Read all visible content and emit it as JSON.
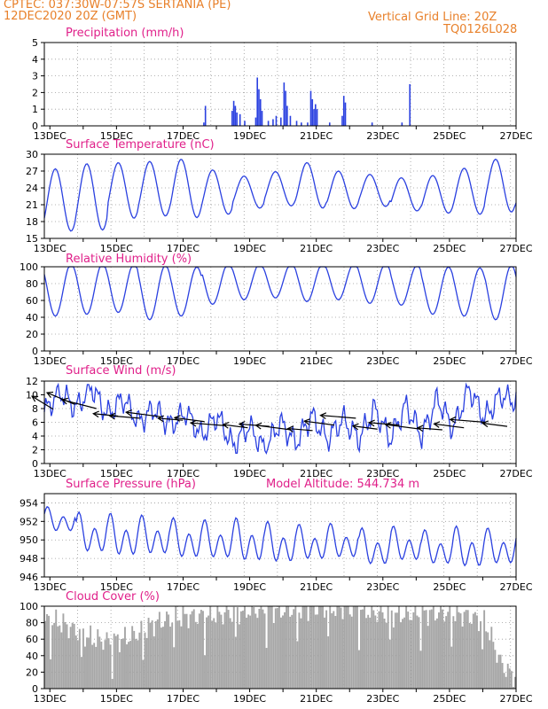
{
  "colors": {
    "header": "#e8802a",
    "panel_title": "#e0208a",
    "series_line": "#2a40e0",
    "precip_bar": "#2a40e0",
    "cloud_bar": "#a6a6a6",
    "wind_arrow": "#000000",
    "grid": "#9a9a9a"
  },
  "header": {
    "line1_left": "CPTEC:   037:30W-07:57S   SERTANIA (PE)",
    "line2_left": "12DEC2020 20Z (GMT)",
    "line1_right": "Vertical Grid Line: 20Z",
    "line2_right": "TQ0126L028"
  },
  "chart_data": [
    {
      "id": "precip",
      "type": "bar",
      "title": "Precipitation (mm/h)",
      "ylim": [
        0,
        5
      ],
      "yticks": [
        "0",
        "1",
        "2",
        "3",
        "4",
        "5"
      ],
      "xticks": [
        "13DEC",
        "15DEC",
        "17DEC",
        "19DEC",
        "21DEC",
        "23DEC",
        "25DEC",
        "27DEC"
      ],
      "grid": true,
      "bar_events": [
        [
          5.05,
          0.2
        ],
        [
          5.1,
          1.2
        ],
        [
          5.95,
          0.9
        ],
        [
          6.0,
          1.5
        ],
        [
          6.05,
          1.2
        ],
        [
          6.1,
          0.8
        ],
        [
          6.2,
          0.7
        ],
        [
          6.35,
          0.3
        ],
        [
          6.7,
          0.5
        ],
        [
          6.75,
          2.9
        ],
        [
          6.8,
          2.2
        ],
        [
          6.85,
          1.6
        ],
        [
          6.9,
          0.9
        ],
        [
          7.1,
          0.3
        ],
        [
          7.25,
          0.4
        ],
        [
          7.35,
          0.6
        ],
        [
          7.5,
          0.5
        ],
        [
          7.6,
          2.6
        ],
        [
          7.65,
          2.1
        ],
        [
          7.7,
          1.2
        ],
        [
          7.8,
          0.6
        ],
        [
          8.0,
          0.3
        ],
        [
          8.15,
          0.2
        ],
        [
          8.35,
          0.2
        ],
        [
          8.45,
          2.1
        ],
        [
          8.5,
          1.6
        ],
        [
          8.55,
          1.0
        ],
        [
          8.6,
          1.3
        ],
        [
          8.65,
          1.0
        ],
        [
          9.05,
          0.2
        ],
        [
          9.45,
          0.6
        ],
        [
          9.5,
          1.8
        ],
        [
          9.55,
          1.4
        ],
        [
          10.4,
          0.2
        ],
        [
          11.35,
          0.2
        ],
        [
          11.6,
          2.5
        ]
      ]
    },
    {
      "id": "temperature",
      "type": "line",
      "title": "Surface Temperature (nC)",
      "ylim": [
        15,
        30
      ],
      "yticks": [
        "15",
        "18",
        "21",
        "24",
        "27",
        "30"
      ],
      "xticks": [
        "13DEC",
        "15DEC",
        "17DEC",
        "19DEC",
        "21DEC",
        "23DEC",
        "25DEC",
        "27DEC"
      ],
      "grid": true,
      "daily_max": [
        27.4,
        28.3,
        28.5,
        28.7,
        29.1,
        27.2,
        26.1,
        26.9,
        28.5,
        27.0,
        26.4,
        25.8,
        26.2,
        27.5,
        29.1,
        29.6
      ],
      "daily_min": [
        16.3,
        16.5,
        18.6,
        19.0,
        18.7,
        19.3,
        20.4,
        20.8,
        20.4,
        20.3,
        20.7,
        19.9,
        19.5,
        19.3,
        19.7,
        19.2
      ]
    },
    {
      "id": "humidity",
      "type": "line",
      "title": "Relative Humidity (%)",
      "ylim": [
        0,
        100
      ],
      "yticks": [
        "0",
        "20",
        "40",
        "60",
        "80",
        "100"
      ],
      "xticks": [
        "13DEC",
        "15DEC",
        "17DEC",
        "19DEC",
        "21DEC",
        "23DEC",
        "25DEC",
        "27DEC"
      ],
      "grid": true,
      "daily_max": [
        100,
        100,
        100,
        98,
        96,
        100,
        100,
        100,
        100,
        100,
        100,
        98,
        96,
        95,
        98,
        98
      ],
      "daily_min": [
        42,
        44,
        46,
        38,
        42,
        55,
        60,
        62,
        58,
        60,
        56,
        54,
        44,
        42,
        38,
        36
      ]
    },
    {
      "id": "wind",
      "type": "line",
      "title": "Surface Wind (m/s)",
      "ylim": [
        0,
        12
      ],
      "yticks": [
        "0",
        "2",
        "4",
        "6",
        "8",
        "10",
        "12"
      ],
      "xticks": [
        "13DEC",
        "15DEC",
        "17DEC",
        "19DEC",
        "21DEC",
        "23DEC",
        "25DEC",
        "27DEC"
      ],
      "grid": true,
      "speed_profile": [
        [
          0,
          7.5
        ],
        [
          0.5,
          10.5
        ],
        [
          1,
          8
        ],
        [
          1.5,
          11.2
        ],
        [
          2,
          7
        ],
        [
          2.5,
          9.5
        ],
        [
          3,
          6
        ],
        [
          3.5,
          8
        ],
        [
          4,
          5.5
        ],
        [
          4.5,
          7.5
        ],
        [
          5,
          4
        ],
        [
          5.5,
          7
        ],
        [
          6,
          2.5
        ],
        [
          6.5,
          5.5
        ],
        [
          7,
          2
        ],
        [
          7.5,
          6
        ],
        [
          8,
          3
        ],
        [
          8.5,
          7
        ],
        [
          9,
          3.5
        ],
        [
          9.5,
          6.5
        ],
        [
          10,
          3.5
        ],
        [
          10.5,
          8
        ],
        [
          11,
          3.5
        ],
        [
          11.5,
          8.5
        ],
        [
          12,
          4
        ],
        [
          12.5,
          9.5
        ],
        [
          13,
          5
        ],
        [
          13.5,
          11
        ],
        [
          14,
          6.5
        ],
        [
          14.5,
          10
        ],
        [
          15,
          9
        ]
      ],
      "arrow_speeds": [
        7.9,
        8.6,
        8.0,
        6.9,
        6.6,
        6.8,
        6.3,
        6.1,
        5.5,
        5.2,
        5.4,
        4.9,
        4.8,
        5.6,
        6.6,
        5.0,
        5.6,
        5.0,
        4.9,
        5.2,
        6.0,
        5.4
      ]
    },
    {
      "id": "pressure",
      "type": "line",
      "title": "Surface Pressure (hPa)",
      "annotation": "Model Altitude: 544.734 m",
      "ylim": [
        946,
        955
      ],
      "yticks": [
        "946",
        "948",
        "950",
        "952",
        "954"
      ],
      "xticks": [
        "13DEC",
        "15DEC",
        "17DEC",
        "19DEC",
        "21DEC",
        "23DEC",
        "25DEC",
        "27DEC"
      ],
      "grid": true,
      "semi_diurnal_max": [
        953.6,
        953.0,
        952.9,
        952.7,
        952.4,
        952.2,
        952.4,
        952.0,
        951.7,
        951.8,
        951.3,
        951.5,
        951.1,
        951.5,
        951.3,
        951.3
      ],
      "semi_diurnal_min": [
        950.5,
        948.0,
        947.6,
        947.8,
        947.4,
        947.4,
        947.0,
        946.9,
        947.3,
        947.5,
        946.7,
        947.2,
        946.8,
        946.4,
        946.8,
        947.0
      ]
    },
    {
      "id": "cloud",
      "type": "area",
      "title": "Cloud Cover (%)",
      "ylim": [
        0,
        100
      ],
      "yticks": [
        "0",
        "20",
        "40",
        "60",
        "80",
        "100"
      ],
      "xticks": [
        "13DEC",
        "15DEC",
        "17DEC",
        "19DEC",
        "21DEC",
        "23DEC",
        "25DEC",
        "27DEC"
      ],
      "grid": true,
      "profile": [
        [
          0,
          82
        ],
        [
          0.5,
          80
        ],
        [
          1,
          70
        ],
        [
          1.5,
          60
        ],
        [
          2,
          58
        ],
        [
          2.5,
          60
        ],
        [
          3,
          68
        ],
        [
          3.5,
          80
        ],
        [
          4,
          85
        ],
        [
          4.5,
          88
        ],
        [
          5,
          88
        ],
        [
          5.5,
          90
        ],
        [
          6,
          92
        ],
        [
          6.5,
          95
        ],
        [
          7,
          96
        ],
        [
          7.5,
          95
        ],
        [
          8,
          96
        ],
        [
          8.5,
          98
        ],
        [
          9,
          98
        ],
        [
          9.5,
          98
        ],
        [
          10,
          96
        ],
        [
          10.5,
          92
        ],
        [
          11,
          90
        ],
        [
          11.5,
          90
        ],
        [
          12,
          92
        ],
        [
          12.5,
          92
        ],
        [
          13,
          92
        ],
        [
          13.5,
          88
        ],
        [
          14,
          80
        ],
        [
          14.5,
          30
        ],
        [
          15,
          10
        ]
      ]
    }
  ]
}
